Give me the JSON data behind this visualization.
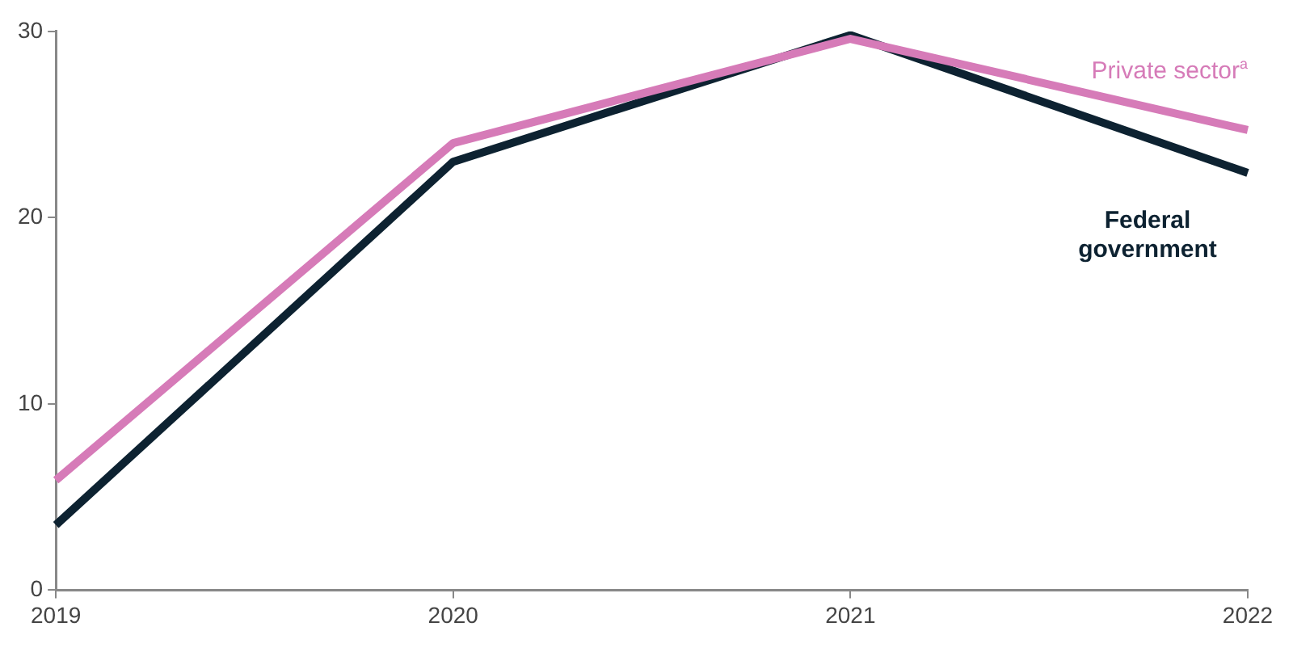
{
  "chart_data": {
    "type": "line",
    "categories": [
      "2019",
      "2020",
      "2021",
      "2022"
    ],
    "series": [
      {
        "name": "Private sector$^{a}$",
        "color": "#d67bb8",
        "values": [
          5.9,
          24.0,
          29.6,
          24.7
        ]
      },
      {
        "name": "Federal government",
        "color": "#0d2231",
        "values": [
          3.5,
          23.0,
          29.8,
          22.4
        ]
      }
    ],
    "ylim": [
      0,
      30
    ],
    "yticks": [
      0,
      10,
      20,
      30
    ],
    "grid": false,
    "legend": false,
    "marker": "none",
    "line_style": "solid"
  }
}
